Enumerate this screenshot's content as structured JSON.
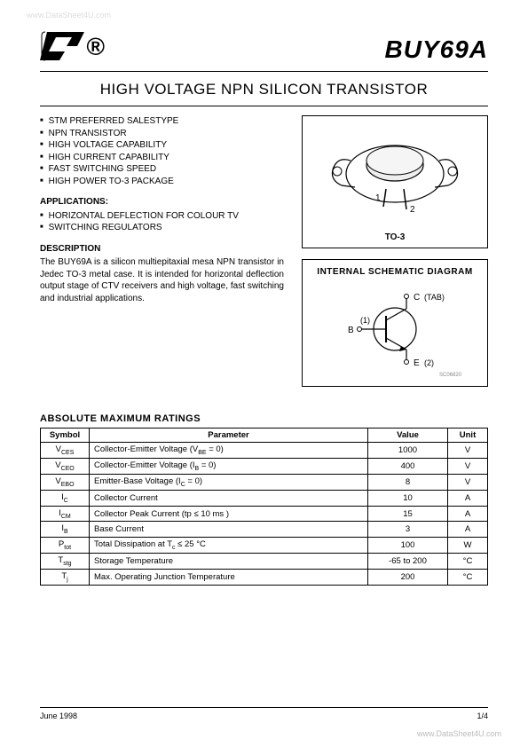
{
  "watermark_top": "www.DataSheet4U.com",
  "watermark_bottom": "www.DataSheet4U.com",
  "part_number": "BUY69A",
  "subtitle": "HIGH VOLTAGE NPN SILICON TRANSISTOR",
  "features": [
    "STM PREFERRED SALESTYPE",
    "NPN TRANSISTOR",
    "HIGH VOLTAGE CAPABILITY",
    "HIGH CURRENT CAPABILITY",
    "FAST SWITCHING SPEED",
    "HIGH POWER TO-3 PACKAGE"
  ],
  "applications_head": "APPLICATIONS:",
  "applications": [
    "HORIZONTAL DEFLECTION FOR COLOUR TV",
    "SWITCHING REGULATORS"
  ],
  "description_head": "DESCRIPTION",
  "description": "The BUY69A is a silicon multiepitaxial mesa NPN transistor in Jedec TO-3 metal case. It is intended for horizontal deflection output stage of CTV receivers and high voltage, fast switching and industrial applications.",
  "package_label": "TO-3",
  "package_pins": {
    "p1": "1",
    "p2": "2"
  },
  "schematic_title": "INTERNAL  SCHEMATIC  DIAGRAM",
  "schematic_labels": {
    "c": "C",
    "c_note": "(TAB)",
    "b": "B",
    "b_note": "(1)",
    "e": "E",
    "e_note": "(2)",
    "code": "SC06820"
  },
  "ratings_title": "ABSOLUTE  MAXIMUM  RATINGS",
  "ratings_headers": {
    "symbol": "Symbol",
    "parameter": "Parameter",
    "value": "Value",
    "unit": "Unit"
  },
  "ratings": [
    {
      "sym": "V<sub>CES</sub>",
      "param": "Collector-Emitter Voltage (V<sub>BE</sub> = 0)",
      "val": "1000",
      "unit": "V"
    },
    {
      "sym": "V<sub>CEO</sub>",
      "param": "Collector-Emitter Voltage (I<sub>B</sub> = 0)",
      "val": "400",
      "unit": "V"
    },
    {
      "sym": "V<sub>EBO</sub>",
      "param": "Emitter-Base Voltage (I<sub>C</sub> = 0)",
      "val": "8",
      "unit": "V"
    },
    {
      "sym": "I<sub>C</sub>",
      "param": "Collector Current",
      "val": "10",
      "unit": "A"
    },
    {
      "sym": "I<sub>CM</sub>",
      "param": "Collector Peak Current (tp ≤ 10 ms )",
      "val": "15",
      "unit": "A"
    },
    {
      "sym": "I<sub>B</sub>",
      "param": "Base Current",
      "val": "3",
      "unit": "A"
    },
    {
      "sym": "P<sub>tot</sub>",
      "param": "Total Dissipation at T<sub>c</sub> ≤ 25 °C",
      "val": "100",
      "unit": "W"
    },
    {
      "sym": "T<sub>stg</sub>",
      "param": "Storage Temperature",
      "val": "-65 to 200",
      "unit": "°C"
    },
    {
      "sym": "T<sub>j</sub>",
      "param": "Max. Operating Junction Temperature",
      "val": "200",
      "unit": "°C"
    }
  ],
  "footer": {
    "date": "June 1998",
    "page": "1/4"
  }
}
